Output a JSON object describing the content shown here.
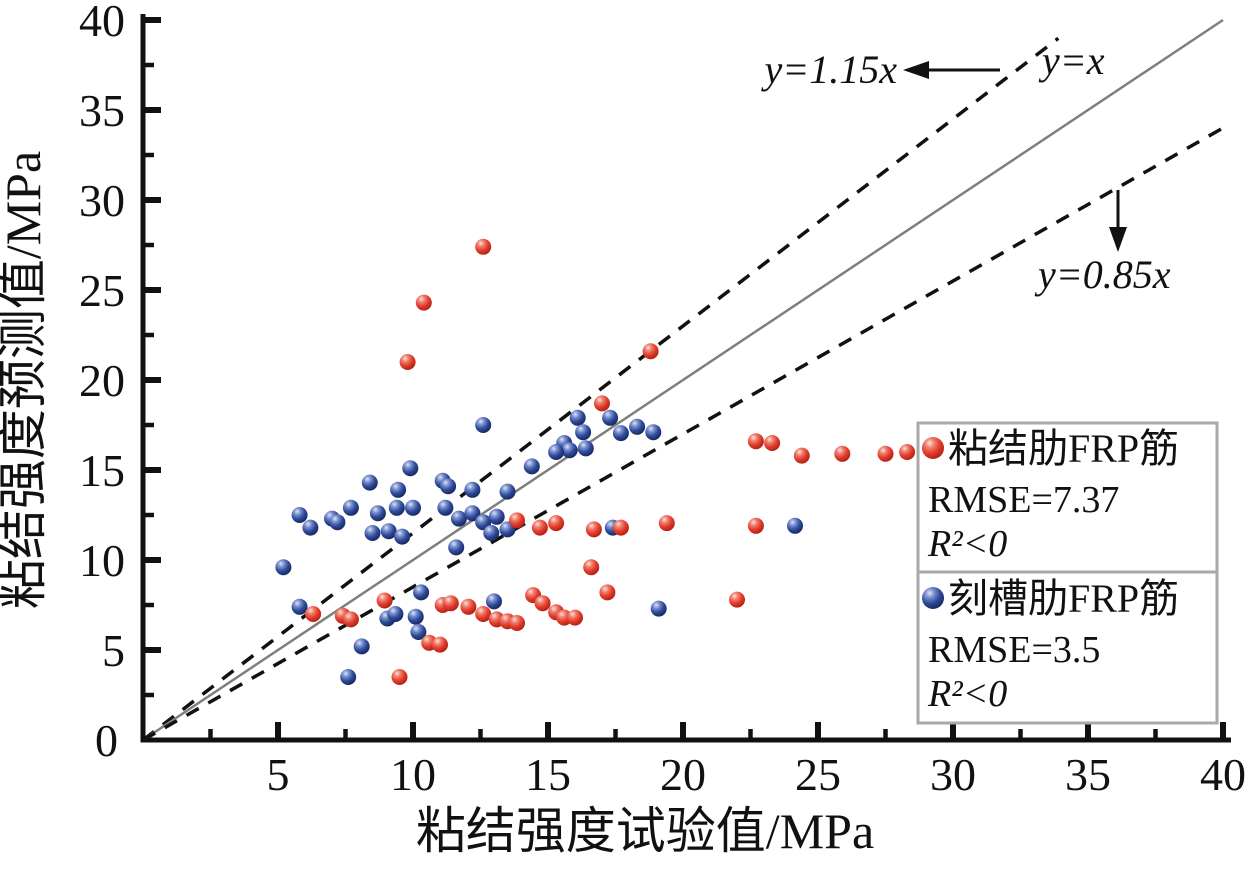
{
  "page": {
    "background": "#ffffff"
  },
  "chart_data": {
    "type": "scatter",
    "title": "",
    "xlabel": "粘结强度试验值/MPa",
    "ylabel": "粘结强度预测值/MPa",
    "xlim": [
      0,
      40
    ],
    "ylim": [
      0,
      40
    ],
    "x_major_ticks": [
      5,
      10,
      15,
      20,
      25,
      30,
      35,
      40
    ],
    "y_major_ticks": [
      5,
      10,
      15,
      20,
      25,
      30,
      35,
      40
    ],
    "minor_tick_step": 2.5,
    "origin_label": "0",
    "grid": false,
    "legend_position": "right-middle",
    "axis_color": "#111111",
    "reference_lines": [
      {
        "label": "y=1.15x",
        "slope": 1.15,
        "style": "dashed",
        "color": "#111111",
        "x_end": 33.9
      },
      {
        "label": "y=x",
        "slope": 1.0,
        "style": "solid",
        "color": "#7f7f7f",
        "x_end": 40
      },
      {
        "label": "y=0.85x",
        "slope": 0.85,
        "style": "dashed",
        "color": "#111111",
        "x_end": 40
      }
    ],
    "annotations": {
      "upper_line_label": "y=1.15x",
      "identity_line_label": "y=x",
      "lower_line_label": "y=0.85x"
    },
    "series": [
      {
        "name": "粘结肋FRP筋",
        "rmse": "RMSE=7.37",
        "r2": "R²<0",
        "color": "#e23b2c",
        "points": [
          [
            12.6,
            27.4
          ],
          [
            10.4,
            24.3
          ],
          [
            9.8,
            21.0
          ],
          [
            18.8,
            21.6
          ],
          [
            17.0,
            18.7
          ],
          [
            22.7,
            16.6
          ],
          [
            23.3,
            16.5
          ],
          [
            24.4,
            15.8
          ],
          [
            25.9,
            15.9
          ],
          [
            27.5,
            15.9
          ],
          [
            28.3,
            16.0
          ],
          [
            13.85,
            12.2
          ],
          [
            14.7,
            11.8
          ],
          [
            15.3,
            12.05
          ],
          [
            16.7,
            11.7
          ],
          [
            17.7,
            11.8
          ],
          [
            19.4,
            12.05
          ],
          [
            22.7,
            11.9
          ],
          [
            16.6,
            9.6
          ],
          [
            17.2,
            8.2
          ],
          [
            22.0,
            7.8
          ],
          [
            6.3,
            7.0
          ],
          [
            7.4,
            6.9
          ],
          [
            7.7,
            6.7
          ],
          [
            8.95,
            7.75
          ],
          [
            11.1,
            7.5
          ],
          [
            11.4,
            7.6
          ],
          [
            12.05,
            7.4
          ],
          [
            12.6,
            7.0
          ],
          [
            13.1,
            6.7
          ],
          [
            13.5,
            6.6
          ],
          [
            13.85,
            6.5
          ],
          [
            14.45,
            8.05
          ],
          [
            14.8,
            7.6
          ],
          [
            15.3,
            7.1
          ],
          [
            15.6,
            6.8
          ],
          [
            16.0,
            6.8
          ],
          [
            10.6,
            5.4
          ],
          [
            11.0,
            5.3
          ],
          [
            9.5,
            3.5
          ]
        ]
      },
      {
        "name": "刻槽肋FRP筋",
        "rmse": "RMSE=3.5",
        "r2": "R²<0",
        "color": "#2e4a9b",
        "points": [
          [
            12.6,
            17.5
          ],
          [
            16.1,
            17.9
          ],
          [
            16.3,
            17.1
          ],
          [
            17.3,
            17.9
          ],
          [
            17.7,
            17.05
          ],
          [
            18.3,
            17.4
          ],
          [
            18.9,
            17.1
          ],
          [
            15.6,
            16.5
          ],
          [
            15.8,
            16.1
          ],
          [
            16.4,
            16.2
          ],
          [
            15.3,
            16.0
          ],
          [
            14.4,
            15.2
          ],
          [
            13.5,
            13.8
          ],
          [
            8.4,
            14.3
          ],
          [
            9.9,
            15.1
          ],
          [
            9.45,
            13.9
          ],
          [
            11.1,
            14.4
          ],
          [
            11.3,
            14.1
          ],
          [
            12.2,
            13.9
          ],
          [
            11.2,
            12.9
          ],
          [
            11.7,
            12.3
          ],
          [
            12.2,
            12.6
          ],
          [
            12.6,
            12.1
          ],
          [
            13.1,
            12.4
          ],
          [
            13.5,
            11.7
          ],
          [
            12.9,
            11.5
          ],
          [
            11.6,
            10.7
          ],
          [
            5.8,
            12.5
          ],
          [
            6.2,
            11.8
          ],
          [
            7.0,
            12.3
          ],
          [
            7.2,
            12.1
          ],
          [
            7.7,
            12.9
          ],
          [
            8.5,
            11.5
          ],
          [
            8.7,
            12.6
          ],
          [
            9.1,
            11.6
          ],
          [
            9.4,
            12.9
          ],
          [
            9.6,
            11.3
          ],
          [
            10.0,
            12.9
          ],
          [
            5.2,
            9.6
          ],
          [
            5.8,
            7.4
          ],
          [
            9.05,
            6.75
          ],
          [
            9.35,
            7.0
          ],
          [
            10.1,
            6.85
          ],
          [
            10.3,
            8.2
          ],
          [
            10.2,
            6.0
          ],
          [
            8.1,
            5.2
          ],
          [
            7.6,
            3.5
          ],
          [
            17.4,
            11.8
          ],
          [
            13.0,
            7.7
          ],
          [
            19.1,
            7.3
          ],
          [
            24.15,
            11.9
          ]
        ]
      }
    ]
  }
}
